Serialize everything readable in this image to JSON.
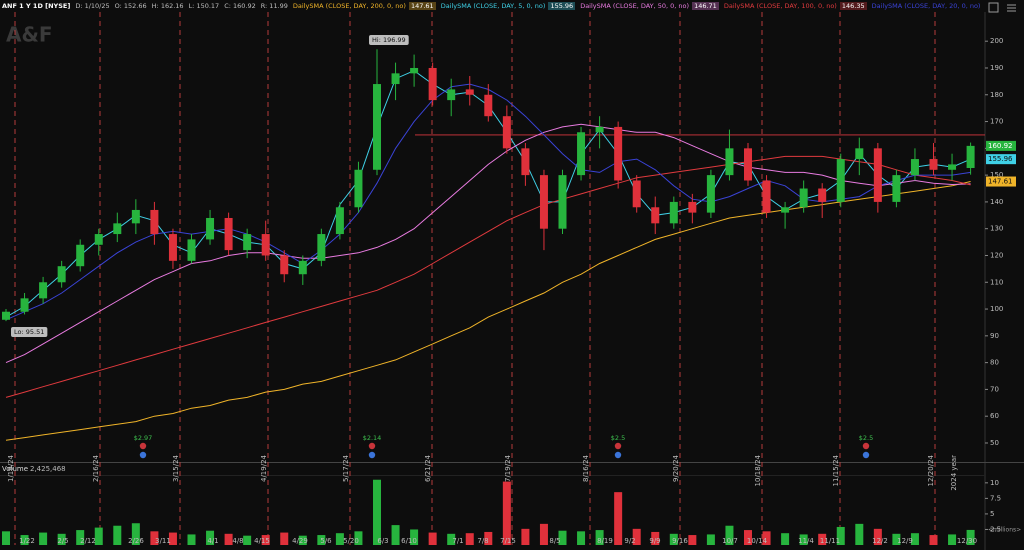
{
  "chart_data": {
    "type": "candlestick",
    "header": {
      "symbol": "ANF 1 Y 1D [NYSE]",
      "fields": [
        "D: 1/10/25",
        "O: 152.66",
        "H: 162.16",
        "L: 150.17",
        "C: 160.92",
        "R: 11.99"
      ]
    },
    "watermark": "A&F",
    "open": [
      96,
      99,
      104,
      110,
      116,
      124,
      128,
      132,
      137,
      128,
      118,
      126,
      134,
      122,
      128,
      120,
      113,
      118,
      128,
      138,
      152,
      184,
      188,
      190,
      178,
      182,
      180,
      172,
      160,
      150,
      130,
      150,
      166,
      168,
      148,
      138,
      132,
      140,
      136,
      150,
      160,
      148,
      136,
      138,
      145,
      140,
      156,
      160,
      140,
      150,
      156,
      152,
      152.66
    ],
    "high": [
      100,
      106,
      112,
      118,
      126,
      130,
      136,
      141,
      140,
      130,
      128,
      137,
      136,
      130,
      133,
      122,
      120,
      130,
      140,
      155,
      196.99,
      192,
      195,
      192,
      186,
      187,
      184,
      176,
      162,
      152,
      152,
      168,
      172,
      170,
      150,
      142,
      142,
      143,
      152,
      167,
      162,
      150,
      140,
      148,
      147,
      158,
      164,
      162,
      152,
      160,
      162,
      158,
      162.16
    ],
    "low": [
      95.51,
      98,
      102,
      108,
      114,
      120,
      125,
      128,
      124,
      115,
      117,
      124,
      120,
      119,
      118,
      110,
      109,
      116,
      126,
      136,
      150,
      178,
      183,
      176,
      172,
      176,
      170,
      158,
      146,
      122,
      128,
      148,
      160,
      145,
      136,
      128,
      130,
      132,
      134,
      148,
      146,
      134,
      130,
      136,
      134,
      138,
      150,
      136,
      138,
      148,
      150,
      148,
      150.17
    ],
    "close": [
      99,
      104,
      110,
      116,
      124,
      128,
      132,
      137,
      128,
      118,
      126,
      134,
      122,
      128,
      120,
      113,
      118,
      128,
      138,
      152,
      184,
      188,
      190,
      178,
      182,
      180,
      172,
      160,
      150,
      130,
      150,
      166,
      168,
      148,
      138,
      132,
      140,
      136,
      150,
      160,
      148,
      136,
      138,
      145,
      140,
      156,
      160,
      140,
      150,
      156,
      152,
      154,
      160.92
    ],
    "up_color": "#27b43e",
    "down_color": "#e0313b",
    "series": [
      {
        "name": "DailySMA (CLOSE, DAY, 200, 0, no)",
        "color": "#f0b429",
        "values": [
          51,
          52,
          53,
          54,
          55,
          56,
          57,
          58,
          60,
          61,
          63,
          64,
          66,
          67,
          69,
          70,
          72,
          73,
          75,
          77,
          79,
          81,
          84,
          87,
          90,
          93,
          97,
          100,
          103,
          106,
          110,
          113,
          117,
          120,
          123,
          126,
          128,
          130,
          132,
          134,
          135,
          136,
          137,
          138,
          139,
          140,
          141,
          142,
          143,
          144,
          145,
          146,
          147.61
        ]
      },
      {
        "name": "DailySMA (CLOSE, DAY, 5, 0, no)",
        "color": "#3fd0e6",
        "values": [
          97,
          101,
          107,
          113,
          120,
          126,
          130,
          135,
          133,
          124,
          121,
          130,
          128,
          125,
          124,
          117,
          115,
          121,
          139,
          148,
          168,
          186,
          189,
          184,
          180,
          181,
          176,
          166,
          155,
          140,
          140,
          158,
          167,
          158,
          143,
          135,
          136,
          138,
          143,
          155,
          154,
          142,
          137,
          141,
          143,
          148,
          158,
          150,
          145,
          153,
          154,
          153,
          155.96
        ]
      },
      {
        "name": "DailySMA (CLOSE, DAY, 50, 0, no)",
        "color": "#e87be0",
        "values": [
          80,
          83,
          87,
          91,
          95,
          99,
          103,
          107,
          111,
          114,
          117,
          118,
          120,
          121,
          121,
          120,
          119,
          119,
          120,
          121,
          123,
          126,
          130,
          136,
          142,
          148,
          154,
          159,
          163,
          166,
          168,
          169,
          168,
          167,
          166,
          166,
          164,
          161,
          158,
          155,
          153,
          152,
          151,
          151,
          150,
          148,
          147,
          146,
          147,
          148,
          147,
          146.5,
          146.71
        ]
      },
      {
        "name": "DailySMA (CLOSE, DAY, 100, 0, no)",
        "color": "#e03a3e",
        "values": [
          67,
          69,
          71,
          73,
          75,
          77,
          79,
          81,
          83,
          85,
          87,
          89,
          91,
          93,
          95,
          97,
          99,
          101,
          103,
          105,
          107,
          110,
          113,
          117,
          121,
          125,
          129,
          133,
          136,
          139,
          141,
          143,
          145,
          147,
          149,
          150,
          151,
          152,
          153,
          154,
          155,
          156,
          157,
          157,
          157,
          156,
          155,
          154,
          152,
          150,
          149,
          148,
          146.35
        ]
      },
      {
        "name": "DailySMA (CLOSE, DAY, 20, 0, no)",
        "color": "#3a43d6",
        "values": [
          96,
          99,
          102,
          106,
          111,
          116,
          121,
          125,
          128,
          129,
          128,
          129,
          130,
          128,
          125,
          121,
          117,
          122,
          128,
          136,
          147,
          160,
          170,
          178,
          183,
          184,
          182,
          178,
          172,
          165,
          158,
          152,
          151,
          155,
          156,
          152,
          146,
          141,
          140,
          142,
          145,
          148,
          146,
          141,
          140,
          141,
          142,
          146,
          148,
          150,
          150,
          150,
          151
        ]
      }
    ],
    "ylim": [
      42.9,
      210.9
    ],
    "yticks": [
      50,
      60,
      70,
      80,
      90,
      100,
      110,
      120,
      130,
      140,
      150,
      160,
      170,
      180,
      190,
      200
    ],
    "hline": 165,
    "hline_color": "#d9363e",
    "annotations": {
      "high": "Hi: 196.99",
      "low": "Lo: 95.51"
    },
    "events": [
      "1/19/24",
      "2/16/24",
      "3/15/24",
      "4/19/24",
      "5/17/24",
      "6/21/24",
      "7/19/24",
      "8/16/24",
      "9/20/24",
      "10/18/24",
      "11/15/24",
      "12/20/24",
      "2024 year"
    ],
    "earnings": [
      "$2.97",
      "$2.14",
      "$2.5",
      "$2.5"
    ],
    "volume": {
      "title": "Volume",
      "last": "2,425,468",
      "values": [
        2.2,
        1.6,
        2.0,
        1.8,
        2.4,
        2.8,
        3.1,
        3.5,
        2.2,
        2.0,
        1.7,
        2.3,
        1.8,
        1.5,
        1.6,
        2.0,
        1.5,
        1.6,
        1.9,
        2.2,
        10.5,
        3.2,
        2.5,
        2.0,
        1.8,
        1.9,
        2.1,
        10.2,
        2.6,
        3.4,
        2.3,
        2.2,
        2.4,
        8.5,
        2.6,
        2.1,
        1.8,
        1.6,
        1.7,
        3.1,
        2.4,
        2.2,
        1.9,
        1.7,
        1.8,
        2.9,
        3.4,
        2.6,
        1.8,
        1.9,
        1.6,
        1.7,
        2.425468
      ],
      "ylim": [
        0,
        11.1
      ],
      "yticks": [
        2.5,
        5,
        7.5,
        10
      ],
      "unit": "<millions>"
    },
    "x_labels": [
      "1/22",
      "2/5",
      "2/12",
      "2/26",
      "3/11",
      "4/1",
      "4/8",
      "4/15",
      "4/29",
      "5/6",
      "5/20",
      "6/3",
      "6/10",
      "7/1",
      "7/8",
      "7/15",
      "8/5",
      "8/19",
      "9/2",
      "9/9",
      "9/16",
      "10/7",
      "10/14",
      "11/4",
      "11/11",
      "12/2",
      "12/9",
      "12/30"
    ]
  }
}
